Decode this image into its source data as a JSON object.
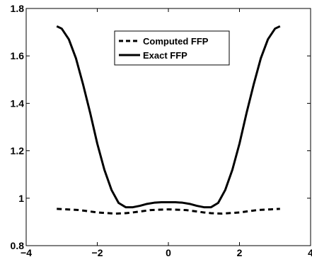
{
  "chart_data": {
    "type": "line",
    "title": "",
    "xlabel": "",
    "ylabel": "",
    "xlim": [
      -4,
      4
    ],
    "ylim": [
      0.8,
      1.8
    ],
    "grid": false,
    "legend_position": "top-center",
    "x_ticks": [
      {
        "value": -4,
        "label": "−4"
      },
      {
        "value": -2,
        "label": "−2"
      },
      {
        "value": 0,
        "label": "0"
      },
      {
        "value": 2,
        "label": "2"
      },
      {
        "value": 4,
        "label": "4"
      }
    ],
    "y_ticks": [
      {
        "value": 0.8,
        "label": "0.8"
      },
      {
        "value": 1.0,
        "label": "1"
      },
      {
        "value": 1.2,
        "label": "1.2"
      },
      {
        "value": 1.4,
        "label": "1.4"
      },
      {
        "value": 1.6,
        "label": "1.6"
      },
      {
        "value": 1.8,
        "label": "1.8"
      }
    ],
    "series": [
      {
        "name": "Computed FFP",
        "style": "dashed",
        "color": "#000000",
        "x": [
          -3.14,
          -2.5,
          -2.0,
          -1.5,
          -1.2,
          -1.0,
          -0.5,
          0,
          0.5,
          1.0,
          1.2,
          1.5,
          2.0,
          2.5,
          3.14
        ],
        "y": [
          0.955,
          0.95,
          0.94,
          0.935,
          0.937,
          0.94,
          0.95,
          0.953,
          0.95,
          0.94,
          0.937,
          0.935,
          0.94,
          0.95,
          0.955
        ]
      },
      {
        "name": "Exact FFP",
        "style": "solid",
        "color": "#000000",
        "x": [
          -3.14,
          -3.0,
          -2.8,
          -2.6,
          -2.4,
          -2.2,
          -2.0,
          -1.8,
          -1.6,
          -1.4,
          -1.2,
          -1.0,
          -0.8,
          -0.6,
          -0.4,
          -0.2,
          0,
          0.2,
          0.4,
          0.6,
          0.8,
          1.0,
          1.2,
          1.4,
          1.6,
          1.8,
          2.0,
          2.2,
          2.4,
          2.6,
          2.8,
          3.0,
          3.14
        ],
        "y": [
          1.725,
          1.715,
          1.67,
          1.59,
          1.48,
          1.36,
          1.23,
          1.12,
          1.035,
          0.98,
          0.962,
          0.962,
          0.968,
          0.976,
          0.981,
          0.983,
          0.983,
          0.983,
          0.981,
          0.976,
          0.968,
          0.962,
          0.962,
          0.98,
          1.035,
          1.12,
          1.23,
          1.36,
          1.48,
          1.59,
          1.67,
          1.715,
          1.725
        ]
      }
    ]
  }
}
